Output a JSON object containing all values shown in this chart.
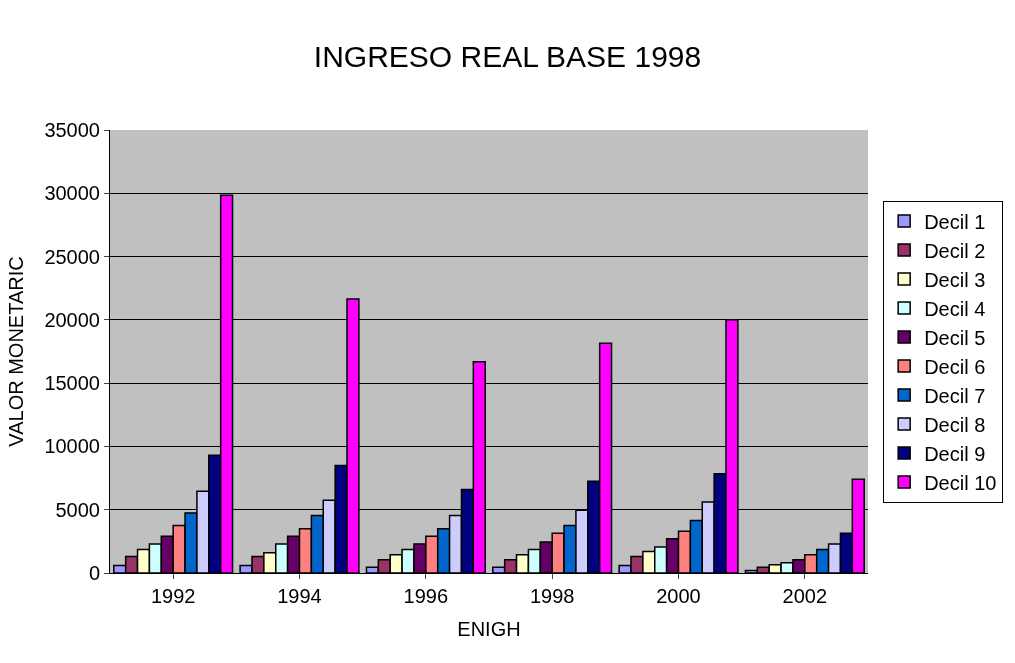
{
  "chart_data": {
    "type": "bar",
    "title": "INGRESO REAL BASE 1998",
    "xlabel": "ENIGH",
    "ylabel": "VALOR MONETARIC",
    "categories": [
      "1992",
      "1994",
      "1996",
      "1998",
      "2000",
      "2002"
    ],
    "series": [
      {
        "name": "Decil 1",
        "color": "#9999ff",
        "values": [
          600,
          600,
          450,
          450,
          600,
          200
        ]
      },
      {
        "name": "Decil 2",
        "color": "#993366",
        "values": [
          1300,
          1300,
          1050,
          1050,
          1300,
          450
        ]
      },
      {
        "name": "Decil 3",
        "color": "#ffffcc",
        "values": [
          1850,
          1600,
          1450,
          1450,
          1700,
          650
        ]
      },
      {
        "name": "Decil 4",
        "color": "#ccffff",
        "values": [
          2300,
          2300,
          1850,
          1850,
          2050,
          800
        ]
      },
      {
        "name": "Decil 5",
        "color": "#660066",
        "values": [
          2900,
          2900,
          2300,
          2450,
          2700,
          1050
        ]
      },
      {
        "name": "Decil 6",
        "color": "#ff8080",
        "values": [
          3750,
          3500,
          2900,
          3150,
          3300,
          1450
        ]
      },
      {
        "name": "Decil 7",
        "color": "#0066cc",
        "values": [
          4750,
          4550,
          3500,
          3750,
          4150,
          1850
        ]
      },
      {
        "name": "Decil 8",
        "color": "#ccccff",
        "values": [
          6450,
          5750,
          4550,
          4950,
          5600,
          2300
        ]
      },
      {
        "name": "Decil 9",
        "color": "#000080",
        "values": [
          9300,
          8500,
          6600,
          7250,
          7850,
          3150
        ]
      },
      {
        "name": "Decil 10",
        "color": "#ff00ff",
        "values": [
          29850,
          21650,
          16700,
          18150,
          20000,
          7400
        ]
      }
    ],
    "ylim": [
      0,
      35000
    ],
    "yticks": [
      0,
      5000,
      10000,
      15000,
      20000,
      25000,
      30000,
      35000
    ],
    "grid": "y",
    "legend": "right"
  }
}
